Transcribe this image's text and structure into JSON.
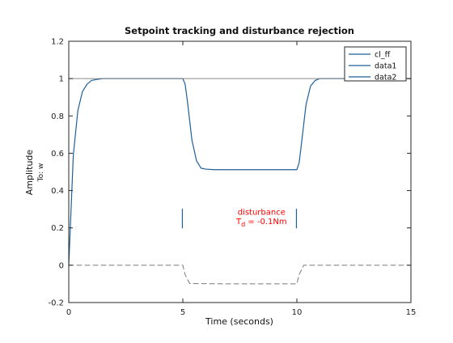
{
  "chart_data": {
    "type": "line",
    "title": "Setpoint tracking and disturbance rejection",
    "xlabel": "Time (seconds)",
    "ylabel": "Amplitude",
    "ylabel_sub": "To: w",
    "xlim": [
      0,
      15
    ],
    "ylim": [
      -0.2,
      1.2
    ],
    "x_ticks": [
      0,
      5,
      10,
      15
    ],
    "y_ticks": [
      -0.2,
      0,
      0.2,
      0.4,
      0.6,
      0.8,
      1,
      1.2
    ],
    "x_tick_labels": [
      "0",
      "5",
      "10",
      "15"
    ],
    "y_tick_labels": [
      "-0.2",
      "0",
      "0.2",
      "0.4",
      "0.6",
      "0.8",
      "1",
      "1.2"
    ],
    "grid": false,
    "legend_position": "top-right",
    "colors": {
      "primary": "#1f5f9a",
      "annotation": "#ff0000",
      "reference": "#7a7a7a",
      "axis": "#262626"
    },
    "series": [
      {
        "name": "cl_ff",
        "style": "solid",
        "x": [
          0,
          0.2,
          0.4,
          0.6,
          0.8,
          1.0,
          1.2,
          1.5,
          2,
          3,
          4,
          5,
          5.1,
          5.2,
          5.4,
          5.6,
          5.8,
          6.0,
          6.4,
          7,
          8,
          9,
          10,
          10.1,
          10.2,
          10.4,
          10.6,
          10.8,
          11.0,
          11.4,
          12,
          13,
          14,
          15
        ],
        "y": [
          0,
          0.59,
          0.83,
          0.93,
          0.97,
          0.99,
          0.995,
          1.0,
          1.0,
          1.0,
          1.0,
          1.0,
          0.97,
          0.88,
          0.67,
          0.56,
          0.52,
          0.515,
          0.512,
          0.512,
          0.512,
          0.512,
          0.512,
          0.55,
          0.65,
          0.86,
          0.96,
          0.99,
          1.0,
          1.0,
          1.0,
          1.0,
          1.0,
          1.0
        ]
      },
      {
        "name": "data1",
        "style": "solid",
        "x": [
          4.98,
          4.98
        ],
        "y": [
          0.2,
          0.3
        ]
      },
      {
        "name": "data2",
        "style": "solid",
        "x": [
          9.98,
          9.98
        ],
        "y": [
          0.2,
          0.3
        ]
      },
      {
        "name": "",
        "style": "dashed",
        "x": [
          0,
          5,
          5.1,
          5.3,
          7,
          10,
          10.1,
          10.3,
          15
        ],
        "y": [
          0,
          0,
          -0.05,
          -0.098,
          -0.1,
          -0.1,
          -0.05,
          0,
          0
        ]
      },
      {
        "name": "",
        "style": "reference",
        "x": [
          0,
          15
        ],
        "y": [
          1,
          1
        ]
      }
    ],
    "annotations": [
      {
        "text": "disturbance",
        "x": 8.45,
        "y": 0.27
      },
      {
        "text": "T",
        "subscript": "d",
        "suffix": " = -0.1Nm",
        "x": 8.45,
        "y": 0.22
      }
    ]
  }
}
